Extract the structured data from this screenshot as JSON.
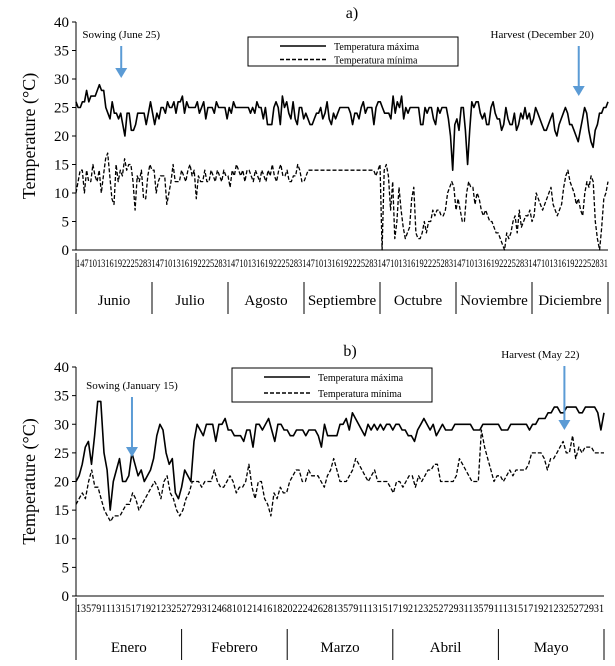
{
  "chart_data": [
    {
      "panel_label": "a)",
      "type": "line",
      "ylabel": "Temperature (°C)",
      "ylim": [
        0,
        40
      ],
      "yticks": [
        0,
        5,
        10,
        15,
        20,
        25,
        30,
        35,
        40
      ],
      "months": [
        "Junio",
        "Julio",
        "Agosto",
        "Septiembre",
        "Octubre",
        "Noviembre",
        "Diciembre"
      ],
      "day_labels": "1471013161922252831471013161922252831471013161922252831471013161922252831471013161922252831471013161922252831471013161922252831",
      "legend": [
        "Temperatura máxima",
        "Temperatura mínima"
      ],
      "annotations": [
        {
          "text": "Sowing (June 25)",
          "x": 0.085
        },
        {
          "text": "Harvest (December 20)",
          "x": 0.945
        }
      ],
      "series": [
        {
          "name": "Temperatura máxima",
          "style": "solid",
          "values": [
            26,
            25,
            25,
            26,
            26,
            28,
            26,
            27,
            27,
            27,
            28,
            29,
            28,
            28,
            25,
            24,
            23,
            26,
            24,
            24,
            23,
            24,
            22,
            20,
            24,
            24,
            21,
            21,
            22,
            24,
            24,
            24,
            24,
            22,
            24,
            26,
            24,
            22,
            24,
            23,
            25,
            25,
            24,
            26,
            25,
            25,
            26,
            24,
            26,
            26,
            27,
            24,
            26,
            25,
            25,
            25,
            25,
            26,
            24,
            25,
            26,
            23,
            25,
            25,
            25,
            24,
            26,
            25,
            25,
            25,
            25,
            23,
            25,
            24,
            26,
            25,
            25,
            25,
            25,
            25,
            25,
            25,
            24,
            25,
            24,
            26,
            25,
            25,
            23,
            25,
            22,
            22,
            22,
            25,
            26,
            25,
            22,
            27,
            25,
            26,
            24,
            23,
            26,
            23,
            22,
            25,
            25,
            23,
            24,
            23,
            22,
            22,
            23,
            24,
            24,
            25,
            23,
            24,
            26,
            23,
            22,
            24,
            23,
            24,
            25,
            25,
            25,
            25,
            25,
            24,
            22,
            24,
            24,
            23,
            25,
            26,
            24,
            25,
            25,
            25,
            22,
            25,
            26,
            26,
            25,
            24,
            24,
            24,
            23,
            27,
            24,
            26,
            25,
            27,
            23,
            25,
            24,
            25,
            25,
            25,
            25,
            25,
            22,
            22,
            25,
            24,
            25,
            25,
            23,
            22,
            25,
            24,
            25,
            25,
            25,
            23,
            20,
            14,
            22,
            23,
            21,
            25,
            25,
            21,
            15,
            21,
            26,
            25,
            26,
            26,
            24,
            23,
            24,
            22,
            22,
            25,
            26,
            24,
            23,
            23,
            21,
            22,
            25,
            23,
            22,
            22,
            24,
            21,
            22,
            24,
            23,
            25,
            23,
            24,
            22,
            23,
            25,
            24,
            23,
            22,
            21,
            21,
            22,
            23,
            24,
            21,
            20,
            22,
            23,
            24,
            25,
            24,
            22,
            22,
            21,
            20,
            19,
            21,
            23,
            25,
            24,
            21,
            19,
            18,
            21,
            22,
            24,
            24,
            25,
            25,
            26
          ]
        },
        {
          "name": "Temperatura mínima",
          "style": "dashed",
          "values": [
            10,
            12,
            14,
            14,
            10,
            14,
            12,
            12,
            15,
            13,
            12,
            14,
            10,
            13,
            16,
            17,
            13,
            9,
            8,
            15,
            12,
            14,
            13,
            16,
            14,
            15,
            15,
            12,
            7,
            13,
            12,
            14,
            9,
            9,
            13,
            15,
            14,
            14,
            10,
            12,
            13,
            13,
            13,
            8,
            10,
            12,
            15,
            12,
            12,
            12,
            14,
            13,
            12,
            14,
            15,
            13,
            14,
            9,
            13,
            12,
            12,
            14,
            12,
            12,
            14,
            13,
            12,
            14,
            13,
            12,
            14,
            13,
            13,
            11,
            14,
            13,
            15,
            14,
            13,
            14,
            12,
            14,
            14,
            13,
            12,
            14,
            13,
            12,
            14,
            13,
            12,
            14,
            13,
            15,
            13,
            12,
            14,
            15,
            13,
            13,
            14,
            12,
            12,
            13,
            13,
            15,
            14,
            12,
            12,
            13,
            14,
            14,
            14,
            14,
            14,
            14,
            14,
            14,
            14,
            14,
            14,
            14,
            14,
            14,
            14,
            14,
            14,
            14,
            14,
            14,
            14,
            14,
            14,
            14,
            14,
            14,
            14,
            14,
            14,
            14,
            14,
            14,
            13,
            14,
            15,
            0,
            14,
            15,
            13,
            7,
            12,
            2,
            5,
            11,
            7,
            4,
            2,
            3,
            4,
            9,
            11,
            3,
            2,
            2,
            3,
            5,
            3,
            5,
            5,
            7,
            6,
            7,
            7,
            6,
            6,
            7,
            10,
            11,
            12,
            11,
            7,
            9,
            7,
            5,
            5,
            10,
            12,
            11,
            11,
            8,
            10,
            9,
            7,
            6,
            7,
            6,
            5,
            5,
            4,
            3,
            3,
            2,
            1,
            0,
            3,
            2,
            3,
            5,
            6,
            3,
            7,
            4,
            5,
            6,
            6,
            7,
            5,
            6,
            10,
            9,
            8,
            7,
            8,
            9,
            10,
            11,
            8,
            7,
            6,
            7,
            8,
            11,
            13,
            14,
            12,
            11,
            10,
            8,
            9,
            7,
            6,
            10,
            12,
            11,
            13,
            12,
            5,
            2,
            0,
            4,
            9,
            10,
            12
          ]
        }
      ]
    },
    {
      "panel_label": "b)",
      "type": "line",
      "ylabel": "Temperature (°C)",
      "ylim": [
        0,
        40
      ],
      "yticks": [
        0,
        5,
        10,
        15,
        20,
        25,
        30,
        35,
        40
      ],
      "months": [
        "Enero",
        "Febrero",
        "Marzo",
        "Abril",
        "Mayo"
      ],
      "day_labels": "135791113151719212325272931246810121416182022242628135791113151719212325272931135791113151719212325272931",
      "legend": [
        "Temperatura máxima",
        "Temperatura mínima"
      ],
      "annotations": [
        {
          "text": "Sowing (January 15)",
          "x": 0.106
        },
        {
          "text": "Harvest (May 22)",
          "x": 0.925
        }
      ],
      "series": [
        {
          "name": "Temperatura máxima",
          "style": "solid",
          "values": [
            20,
            21,
            23,
            26,
            27,
            23,
            28,
            34,
            34,
            25,
            22,
            15,
            20,
            22,
            24,
            20,
            20,
            21,
            25,
            23,
            21,
            22,
            20,
            21,
            22,
            24,
            28,
            30,
            29,
            25,
            23,
            24,
            18,
            17,
            19,
            22,
            21,
            20,
            27,
            30,
            29,
            28,
            30,
            30,
            30,
            27,
            30,
            30,
            31,
            29,
            29,
            28,
            28,
            28,
            27,
            29,
            29,
            26,
            30,
            30,
            29,
            30,
            31,
            29,
            27,
            30,
            30,
            29,
            29,
            28,
            28,
            29,
            29,
            29,
            28,
            29,
            29,
            29,
            28,
            26,
            30,
            28,
            28,
            28,
            28,
            30,
            30,
            31,
            29,
            32,
            31,
            30,
            29,
            28,
            30,
            29,
            30,
            29,
            30,
            29,
            30,
            30,
            29,
            30,
            30,
            29,
            29,
            28,
            28,
            27,
            29,
            30,
            31,
            30,
            29,
            30,
            28,
            29,
            30,
            29,
            29,
            29,
            30,
            30,
            30,
            30,
            30,
            30,
            29,
            29,
            29,
            30,
            30,
            30,
            30,
            30,
            30,
            29,
            29,
            29,
            30,
            30,
            30,
            30,
            30,
            30,
            29,
            30,
            30,
            31,
            31,
            31,
            32,
            32,
            33,
            33,
            32,
            32,
            33,
            33,
            33,
            33,
            32,
            32,
            33,
            33,
            33,
            33,
            32,
            29,
            32
          ]
        },
        {
          "name": "Temperatura mínima",
          "style": "dashed",
          "values": [
            16,
            17,
            18,
            17,
            20,
            22,
            19,
            19,
            17,
            15,
            14,
            13,
            14,
            14,
            14,
            15,
            16,
            16,
            18,
            17,
            15,
            16,
            17,
            18,
            19,
            20,
            19,
            17,
            20,
            21,
            18,
            17,
            15,
            14,
            15,
            17,
            18,
            20,
            20,
            20,
            19,
            20,
            20,
            20,
            22,
            20,
            19,
            19,
            20,
            21,
            20,
            18,
            19,
            19,
            20,
            23,
            19,
            17,
            20,
            20,
            17,
            16,
            14,
            18,
            17,
            19,
            18,
            18,
            20,
            21,
            22,
            22,
            20,
            20,
            22,
            21,
            21,
            21,
            20,
            19,
            21,
            22,
            24,
            22,
            20,
            20,
            20,
            21,
            22,
            24,
            23,
            22,
            21,
            20,
            21,
            22,
            20,
            20,
            20,
            20,
            19,
            18,
            20,
            20,
            19,
            20,
            21,
            21,
            19,
            21,
            20,
            21,
            22,
            22,
            23,
            23,
            20,
            20,
            20,
            20,
            20,
            21,
            24,
            23,
            22,
            21,
            20,
            20,
            20,
            29,
            26,
            24,
            22,
            20,
            21,
            21,
            20,
            21,
            22,
            21,
            22,
            22,
            22,
            22,
            23,
            25,
            25,
            25,
            25,
            24,
            22,
            24,
            24,
            25,
            26,
            27,
            25,
            25,
            28,
            24,
            26,
            25,
            26,
            26,
            26,
            25,
            25,
            25,
            25
          ]
        }
      ]
    }
  ]
}
